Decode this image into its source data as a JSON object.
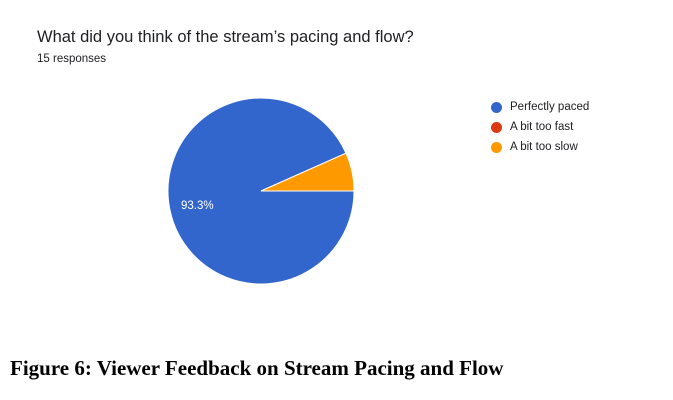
{
  "question": {
    "title": "What did you think of the stream’s pacing and flow?",
    "responses_label": "15 responses"
  },
  "figure_caption": "Figure 6: Viewer Feedback on Stream Pacing and Flow",
  "chart_data": {
    "type": "pie",
    "title": "What did you think of the stream’s pacing and flow?",
    "subtitle": "15 responses",
    "total_responses": 15,
    "legend_position": "right",
    "slices": [
      {
        "label": "Perfectly paced",
        "count": 14,
        "percent": 93.3,
        "color": "#3366cc",
        "label_text": "93.3%"
      },
      {
        "label": "A bit too fast",
        "count": 0,
        "percent": 0,
        "color": "#dc3912",
        "label_text": ""
      },
      {
        "label": "A bit too slow",
        "count": 1,
        "percent": 6.7,
        "color": "#ff9900",
        "label_text": ""
      }
    ]
  }
}
